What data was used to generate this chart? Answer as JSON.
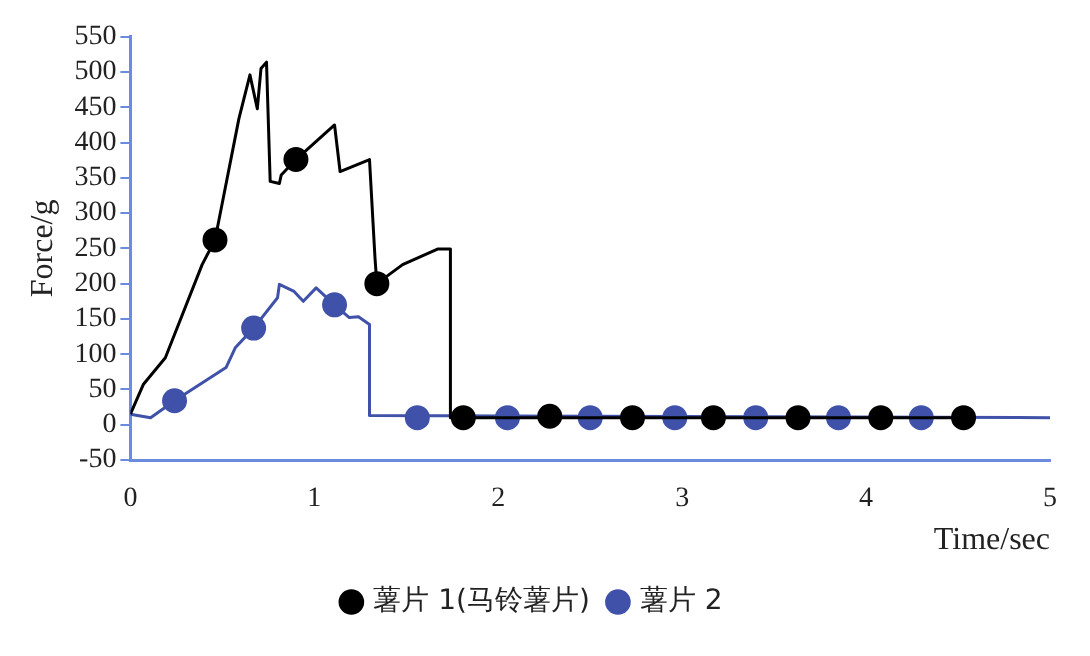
{
  "chart_data": {
    "type": "line",
    "xlabel": "Time/sec",
    "ylabel": "Force/g",
    "xlim": [
      0,
      5
    ],
    "xticks": [
      0,
      1,
      2,
      3,
      4,
      5
    ],
    "ylim": [
      -50,
      550
    ],
    "yticks": [
      -50,
      0,
      50,
      100,
      150,
      200,
      250,
      300,
      350,
      400,
      450,
      500,
      550
    ],
    "grid": false,
    "legend": "bottom",
    "series": [
      {
        "type": "line",
        "marker": "none",
        "color": "#000000",
        "x": [
          0,
          0.07,
          0.19,
          0.39,
          0.46,
          0.59,
          0.65,
          0.69,
          0.71,
          0.74,
          0.76,
          0.81,
          0.82,
          0.9,
          1.11,
          1.14,
          1.3,
          1.33,
          1.34,
          1.48,
          1.67,
          1.74,
          1.74,
          4.53
        ],
        "values": [
          15,
          57,
          95,
          227,
          262,
          434,
          496,
          448,
          505,
          514,
          345,
          342,
          354,
          376,
          425,
          359,
          376,
          236,
          200,
          227,
          249,
          249,
          10,
          10
        ]
      },
      {
        "type": "scatter",
        "marker": "circle",
        "name": "薯片 1(马铃薯片)",
        "color": "#000000",
        "x": [
          0.46,
          0.9,
          1.34,
          1.81,
          2.28,
          2.73,
          3.17,
          3.63,
          4.08,
          4.53
        ],
        "values": [
          262,
          376,
          200,
          10,
          12,
          10,
          10,
          10,
          10,
          10
        ]
      },
      {
        "type": "line",
        "marker": "none",
        "color": "#3f51a8",
        "x": [
          0,
          0.11,
          0.24,
          0.52,
          0.57,
          0.67,
          0.8,
          0.81,
          0.89,
          0.94,
          1.01,
          1.11,
          1.19,
          1.24,
          1.3,
          1.3,
          5
        ],
        "values": [
          15,
          10,
          34,
          81,
          109,
          137,
          180,
          199,
          189,
          175,
          194,
          170,
          152,
          153,
          142,
          13,
          10
        ]
      },
      {
        "type": "scatter",
        "marker": "circle",
        "name": "薯片 2",
        "color": "#3f51a8",
        "x": [
          0.24,
          0.67,
          1.11,
          1.56,
          2.05,
          2.5,
          2.96,
          3.4,
          3.85,
          4.3
        ],
        "values": [
          34,
          137,
          170,
          10,
          10,
          10,
          10,
          10,
          10,
          10
        ]
      }
    ]
  }
}
